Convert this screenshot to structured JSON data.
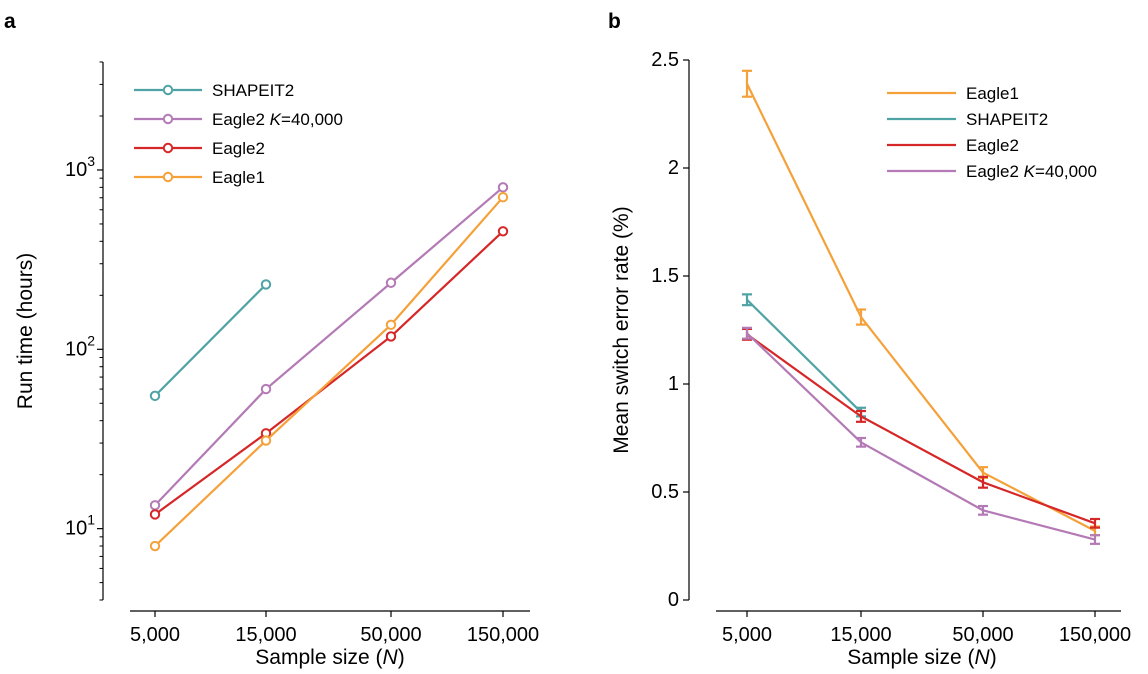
{
  "chart_data": [
    {
      "panel": "a",
      "type": "line",
      "y_scale": "log",
      "xlabel": "Sample size (N)",
      "xlabel_parts": [
        "Sample size (",
        "N",
        ")"
      ],
      "ylabel": "Run time (hours)",
      "categories": [
        "5,000",
        "15,000",
        "50,000",
        "150,000"
      ],
      "ylim": [
        4,
        4000
      ],
      "y_ticks": [
        10,
        100,
        1000
      ],
      "y_tick_labels": [
        [
          "10",
          "1"
        ],
        [
          "10",
          "2"
        ],
        [
          "10",
          "3"
        ]
      ],
      "legend_position": "top-left",
      "series": [
        {
          "name": "SHAPEIT2",
          "name_parts": [
            "SHAPEIT2"
          ],
          "color": "#4fa3a5",
          "values": [
            55,
            230,
            null,
            null
          ]
        },
        {
          "name": "Eagle2 K=40,000",
          "name_parts": [
            "Eagle2  ",
            "K",
            "=40,000"
          ],
          "color": "#b37ab5",
          "values": [
            13.5,
            60,
            235,
            800
          ]
        },
        {
          "name": "Eagle2",
          "name_parts": [
            "Eagle2"
          ],
          "color": "#d62728",
          "values": [
            12,
            34,
            118,
            455
          ]
        },
        {
          "name": "Eagle1",
          "name_parts": [
            "Eagle1"
          ],
          "color": "#f5a13a",
          "values": [
            8,
            31,
            137,
            705
          ]
        }
      ]
    },
    {
      "panel": "b",
      "type": "line",
      "y_scale": "linear",
      "xlabel": "Sample size (N)",
      "xlabel_parts": [
        "Sample size (",
        "N",
        ")"
      ],
      "ylabel": "Mean switch error rate (%)",
      "categories": [
        "5,000",
        "15,000",
        "50,000",
        "150,000"
      ],
      "ylim": [
        0,
        2.5
      ],
      "y_ticks": [
        0,
        0.5,
        1,
        1.5,
        2,
        2.5
      ],
      "y_tick_labels": [
        "0",
        "0.5",
        "1",
        "1.5",
        "2",
        "2.5"
      ],
      "legend_position": "top-right",
      "series": [
        {
          "name": "Eagle1",
          "name_parts": [
            "Eagle1"
          ],
          "color": "#f5a13a",
          "values": [
            2.39,
            1.31,
            0.59,
            0.32
          ],
          "errors": [
            0.06,
            0.035,
            0.025,
            0.02
          ]
        },
        {
          "name": "SHAPEIT2",
          "name_parts": [
            "SHAPEIT2"
          ],
          "color": "#4fa3a5",
          "values": [
            1.39,
            0.87,
            null,
            null
          ],
          "errors": [
            0.025,
            0.02,
            null,
            null
          ]
        },
        {
          "name": "Eagle2",
          "name_parts": [
            "Eagle2"
          ],
          "color": "#d62728",
          "values": [
            1.23,
            0.85,
            0.545,
            0.355
          ],
          "errors": [
            0.025,
            0.025,
            0.025,
            0.02
          ]
        },
        {
          "name": "Eagle2 K=40,000",
          "name_parts": [
            "Eagle2  ",
            "K",
            "=40,000"
          ],
          "color": "#b37ab5",
          "values": [
            1.235,
            0.73,
            0.415,
            0.28
          ],
          "errors": [
            0.025,
            0.02,
            0.02,
            0.02
          ]
        }
      ]
    }
  ]
}
